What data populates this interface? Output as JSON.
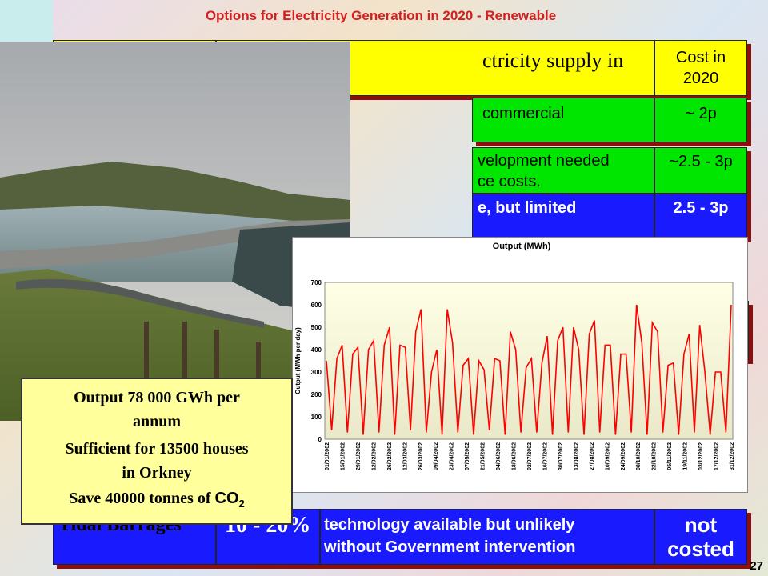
{
  "slide": {
    "title": "Options for Electricity Generation in 2020 - Renewable",
    "page_number": "27"
  },
  "table": {
    "header_partial": "ctricity supply in",
    "cost_header_line1": "Cost in",
    "cost_header_line2": "2020",
    "row1_text": "commercial",
    "row1_cost": "~ 2p",
    "row2_text_line1": "velopment needed",
    "row2_text_line2": "ce costs.",
    "row2_cost": "~2.5 - 3p",
    "row3_text": "e, but limited",
    "row3_cost": "2.5 - 3p",
    "tidal_name": "Tidal Barrages",
    "tidal_percent": "10 - 20%",
    "tidal_text_line1": "technology available but unlikely",
    "tidal_text_line2": "without Government intervention",
    "tidal_cost_line1": "not",
    "tidal_cost_line2": "costed"
  },
  "callout": {
    "line1": "Output 78 000 GWh per",
    "line2": "annum",
    "line3": "Sufficient for 13500 houses",
    "line4": "in Orkney",
    "line5_prefix": "Save 40000 tonnes of ",
    "line5_chem": "CO",
    "line5_sub": "2"
  },
  "colors": {
    "title": "#d42020",
    "yellow_cell": "#ffff00",
    "green_cell": "#00e600",
    "blue_cell": "#1a1aff",
    "callout_bg": "#ffff9c",
    "series_line": "#ff0000"
  },
  "chart_data": {
    "type": "line",
    "title": "Output (MWh)",
    "ylabel": "Output (MWh per day)",
    "xlabel": "",
    "ylim": [
      0,
      700
    ],
    "yticks": [
      0,
      100,
      200,
      300,
      400,
      500,
      600,
      700
    ],
    "x_ticks": [
      "01/01/2002",
      "15/01/2002",
      "29/01/2002",
      "12/02/2002",
      "26/02/2002",
      "12/03/2002",
      "26/03/2002",
      "09/04/2002",
      "23/04/2002",
      "07/05/2002",
      "21/05/2002",
      "04/06/2002",
      "18/06/2002",
      "02/07/2002",
      "16/07/2002",
      "30/07/2002",
      "13/08/2002",
      "27/08/2002",
      "10/09/2002",
      "24/09/2002",
      "08/10/2002",
      "22/10/2002",
      "05/11/2002",
      "19/11/2002",
      "03/12/2002",
      "17/12/2002",
      "31/12/2002"
    ],
    "grid": false,
    "series": [
      {
        "values": [
          350,
          40,
          360,
          420,
          30,
          380,
          410,
          20,
          400,
          440,
          30,
          420,
          500,
          20,
          420,
          410,
          40,
          480,
          580,
          30,
          300,
          400,
          20,
          580,
          430,
          30,
          330,
          360,
          20,
          350,
          310,
          40,
          360,
          350,
          20,
          480,
          400,
          30,
          320,
          360,
          30,
          340,
          460,
          20,
          440,
          500,
          30,
          500,
          400,
          20,
          470,
          530,
          30,
          420,
          420,
          20,
          380,
          380,
          30,
          600,
          430,
          20,
          520,
          480,
          30,
          330,
          340,
          20,
          380,
          470,
          30,
          510,
          300,
          20,
          300,
          300,
          30,
          600
        ]
      }
    ]
  }
}
